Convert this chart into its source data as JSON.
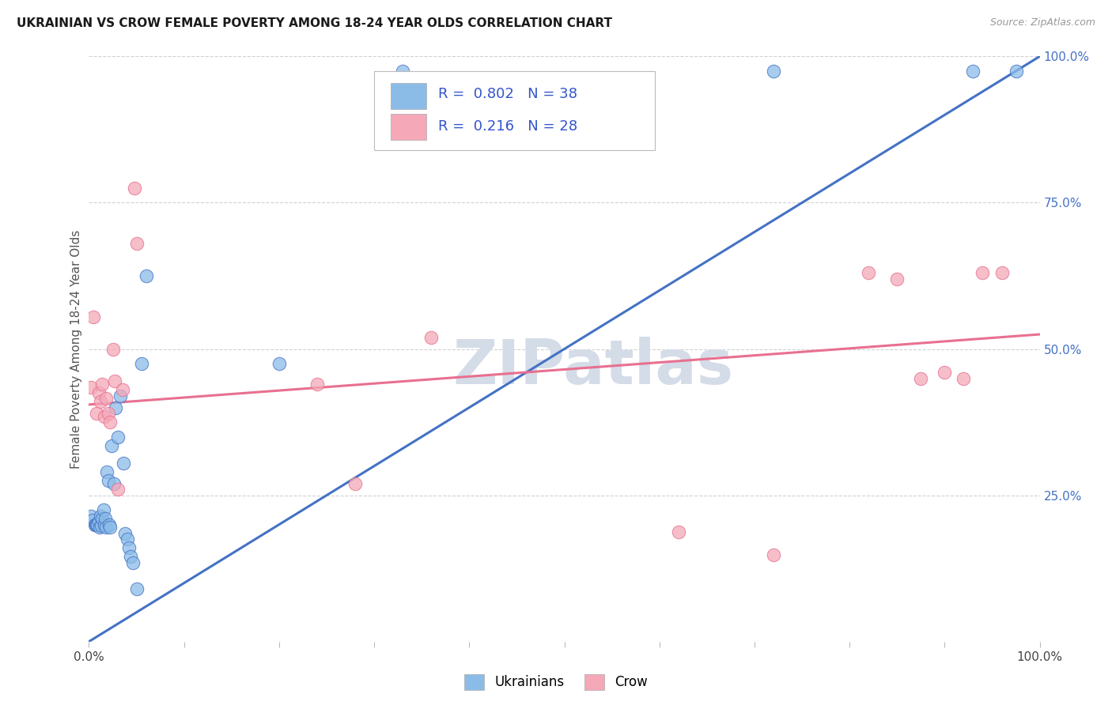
{
  "title": "UKRAINIAN VS CROW FEMALE POVERTY AMONG 18-24 YEAR OLDS CORRELATION CHART",
  "source": "Source: ZipAtlas.com",
  "ylabel": "Female Poverty Among 18-24 Year Olds",
  "xlim": [
    0.0,
    1.0
  ],
  "ylim": [
    0.0,
    1.0
  ],
  "background_color": "#ffffff",
  "grid_color": "#cccccc",
  "ukr_color": "#8bbce8",
  "crow_color": "#f4a8b8",
  "ukr_line_color": "#4472c4",
  "crow_line_color": "#e87090",
  "legend_text_color": "#3355cc",
  "legend_N_color": "#228833",
  "ukr_R": "0.802",
  "ukr_N": "38",
  "crow_R": "0.216",
  "crow_N": "28",
  "ukr_trend_x": [
    0.0,
    1.0
  ],
  "ukr_trend_y": [
    0.0,
    1.0
  ],
  "crow_trend_x": [
    0.0,
    1.0
  ],
  "crow_trend_y": [
    0.405,
    0.525
  ],
  "ukr_x": [
    0.002,
    0.004,
    0.006,
    0.007,
    0.008,
    0.009,
    0.01,
    0.011,
    0.012,
    0.013,
    0.014,
    0.015,
    0.016,
    0.017,
    0.018,
    0.019,
    0.02,
    0.021,
    0.022,
    0.024,
    0.026,
    0.028,
    0.03,
    0.033,
    0.036,
    0.038,
    0.04,
    0.042,
    0.044,
    0.046,
    0.05,
    0.055,
    0.06,
    0.2,
    0.33,
    0.72,
    0.93,
    0.975
  ],
  "ukr_y": [
    0.215,
    0.208,
    0.2,
    0.2,
    0.2,
    0.2,
    0.205,
    0.195,
    0.215,
    0.198,
    0.21,
    0.225,
    0.2,
    0.21,
    0.195,
    0.29,
    0.275,
    0.2,
    0.195,
    0.335,
    0.27,
    0.4,
    0.35,
    0.42,
    0.305,
    0.185,
    0.175,
    0.16,
    0.145,
    0.135,
    0.09,
    0.475,
    0.625,
    0.475,
    0.975,
    0.975,
    0.975,
    0.975
  ],
  "crow_x": [
    0.002,
    0.005,
    0.008,
    0.01,
    0.012,
    0.014,
    0.016,
    0.018,
    0.02,
    0.022,
    0.025,
    0.027,
    0.03,
    0.035,
    0.048,
    0.05,
    0.24,
    0.28,
    0.36,
    0.62,
    0.72,
    0.82,
    0.85,
    0.875,
    0.9,
    0.92,
    0.94,
    0.96
  ],
  "crow_y": [
    0.435,
    0.555,
    0.39,
    0.425,
    0.41,
    0.44,
    0.385,
    0.415,
    0.39,
    0.375,
    0.5,
    0.445,
    0.26,
    0.43,
    0.775,
    0.68,
    0.44,
    0.27,
    0.52,
    0.188,
    0.148,
    0.63,
    0.62,
    0.45,
    0.46,
    0.45,
    0.63,
    0.63
  ],
  "watermark": "ZIPatlas",
  "watermark_color": "#d4dce8",
  "watermark_fontsize": 56
}
